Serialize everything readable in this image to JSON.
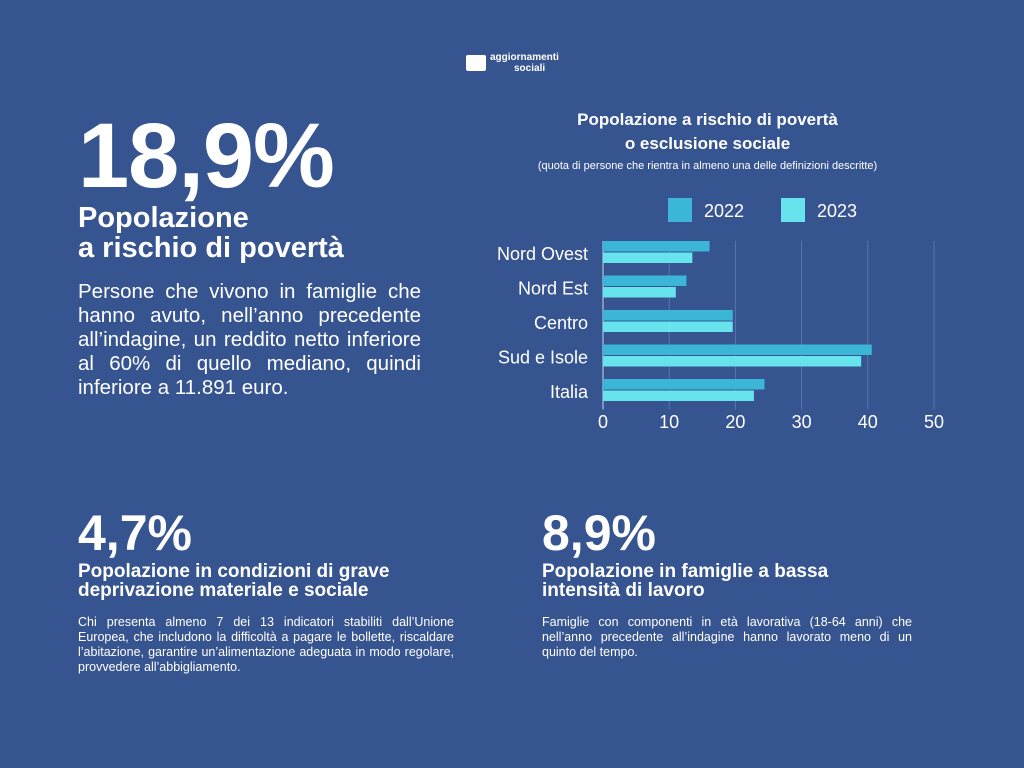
{
  "logo": {
    "line1": "aggiornamenti",
    "line2": "sociali"
  },
  "main": {
    "value": "18,9%",
    "title_line1": "Popolazione",
    "title_line2": "a rischio di povertà",
    "description": "Persone che vivono in famiglie che hanno avuto, nell’anno precedente all’indagine, un reddito netto inferiore al 60% di quello mediano, quindi inferiore a 11.891 euro."
  },
  "stats": [
    {
      "value": "4,7%",
      "title": "Popolazione in condizioni di grave deprivazione materiale e sociale",
      "description": "Chi presenta almeno 7 dei 13 indicatori stabiliti dall’Unione Europea, che includono la difficoltà a pagare le bollette, riscaldare l’abitazione, garantire un’alimentazione adeguata in modo regolare, provvedere all’abbigliamento."
    },
    {
      "value": "8,9%",
      "title": "Popolazione in famiglie a bassa intensità di lavoro",
      "description": "Famiglie con componenti in età lavorativa (18-64 anni) che nell’anno precedente all’indagine hanno lavorato meno di un quinto del tempo."
    }
  ],
  "chart_data": {
    "type": "bar",
    "orientation": "horizontal",
    "title_line1": "Popolazione a rischio di povertà",
    "title_line2": "o esclusione sociale",
    "subtitle": "(quota di persone che rientra in almeno una delle definizioni descritte)",
    "categories": [
      "Nord Ovest",
      "Nord Est",
      "Centro",
      "Sud e Isole",
      "Italia"
    ],
    "series": [
      {
        "name": "2022",
        "color": "#3bb6d6",
        "values": [
          16.1,
          12.6,
          19.6,
          40.6,
          24.4
        ]
      },
      {
        "name": "2023",
        "color": "#66e3ec",
        "values": [
          13.5,
          11.0,
          19.6,
          39.0,
          22.8
        ]
      }
    ],
    "xlim": [
      0,
      50
    ],
    "xticks": [
      "0",
      "10",
      "20",
      "30",
      "40",
      "50"
    ],
    "grid": true,
    "legend": "top"
  }
}
